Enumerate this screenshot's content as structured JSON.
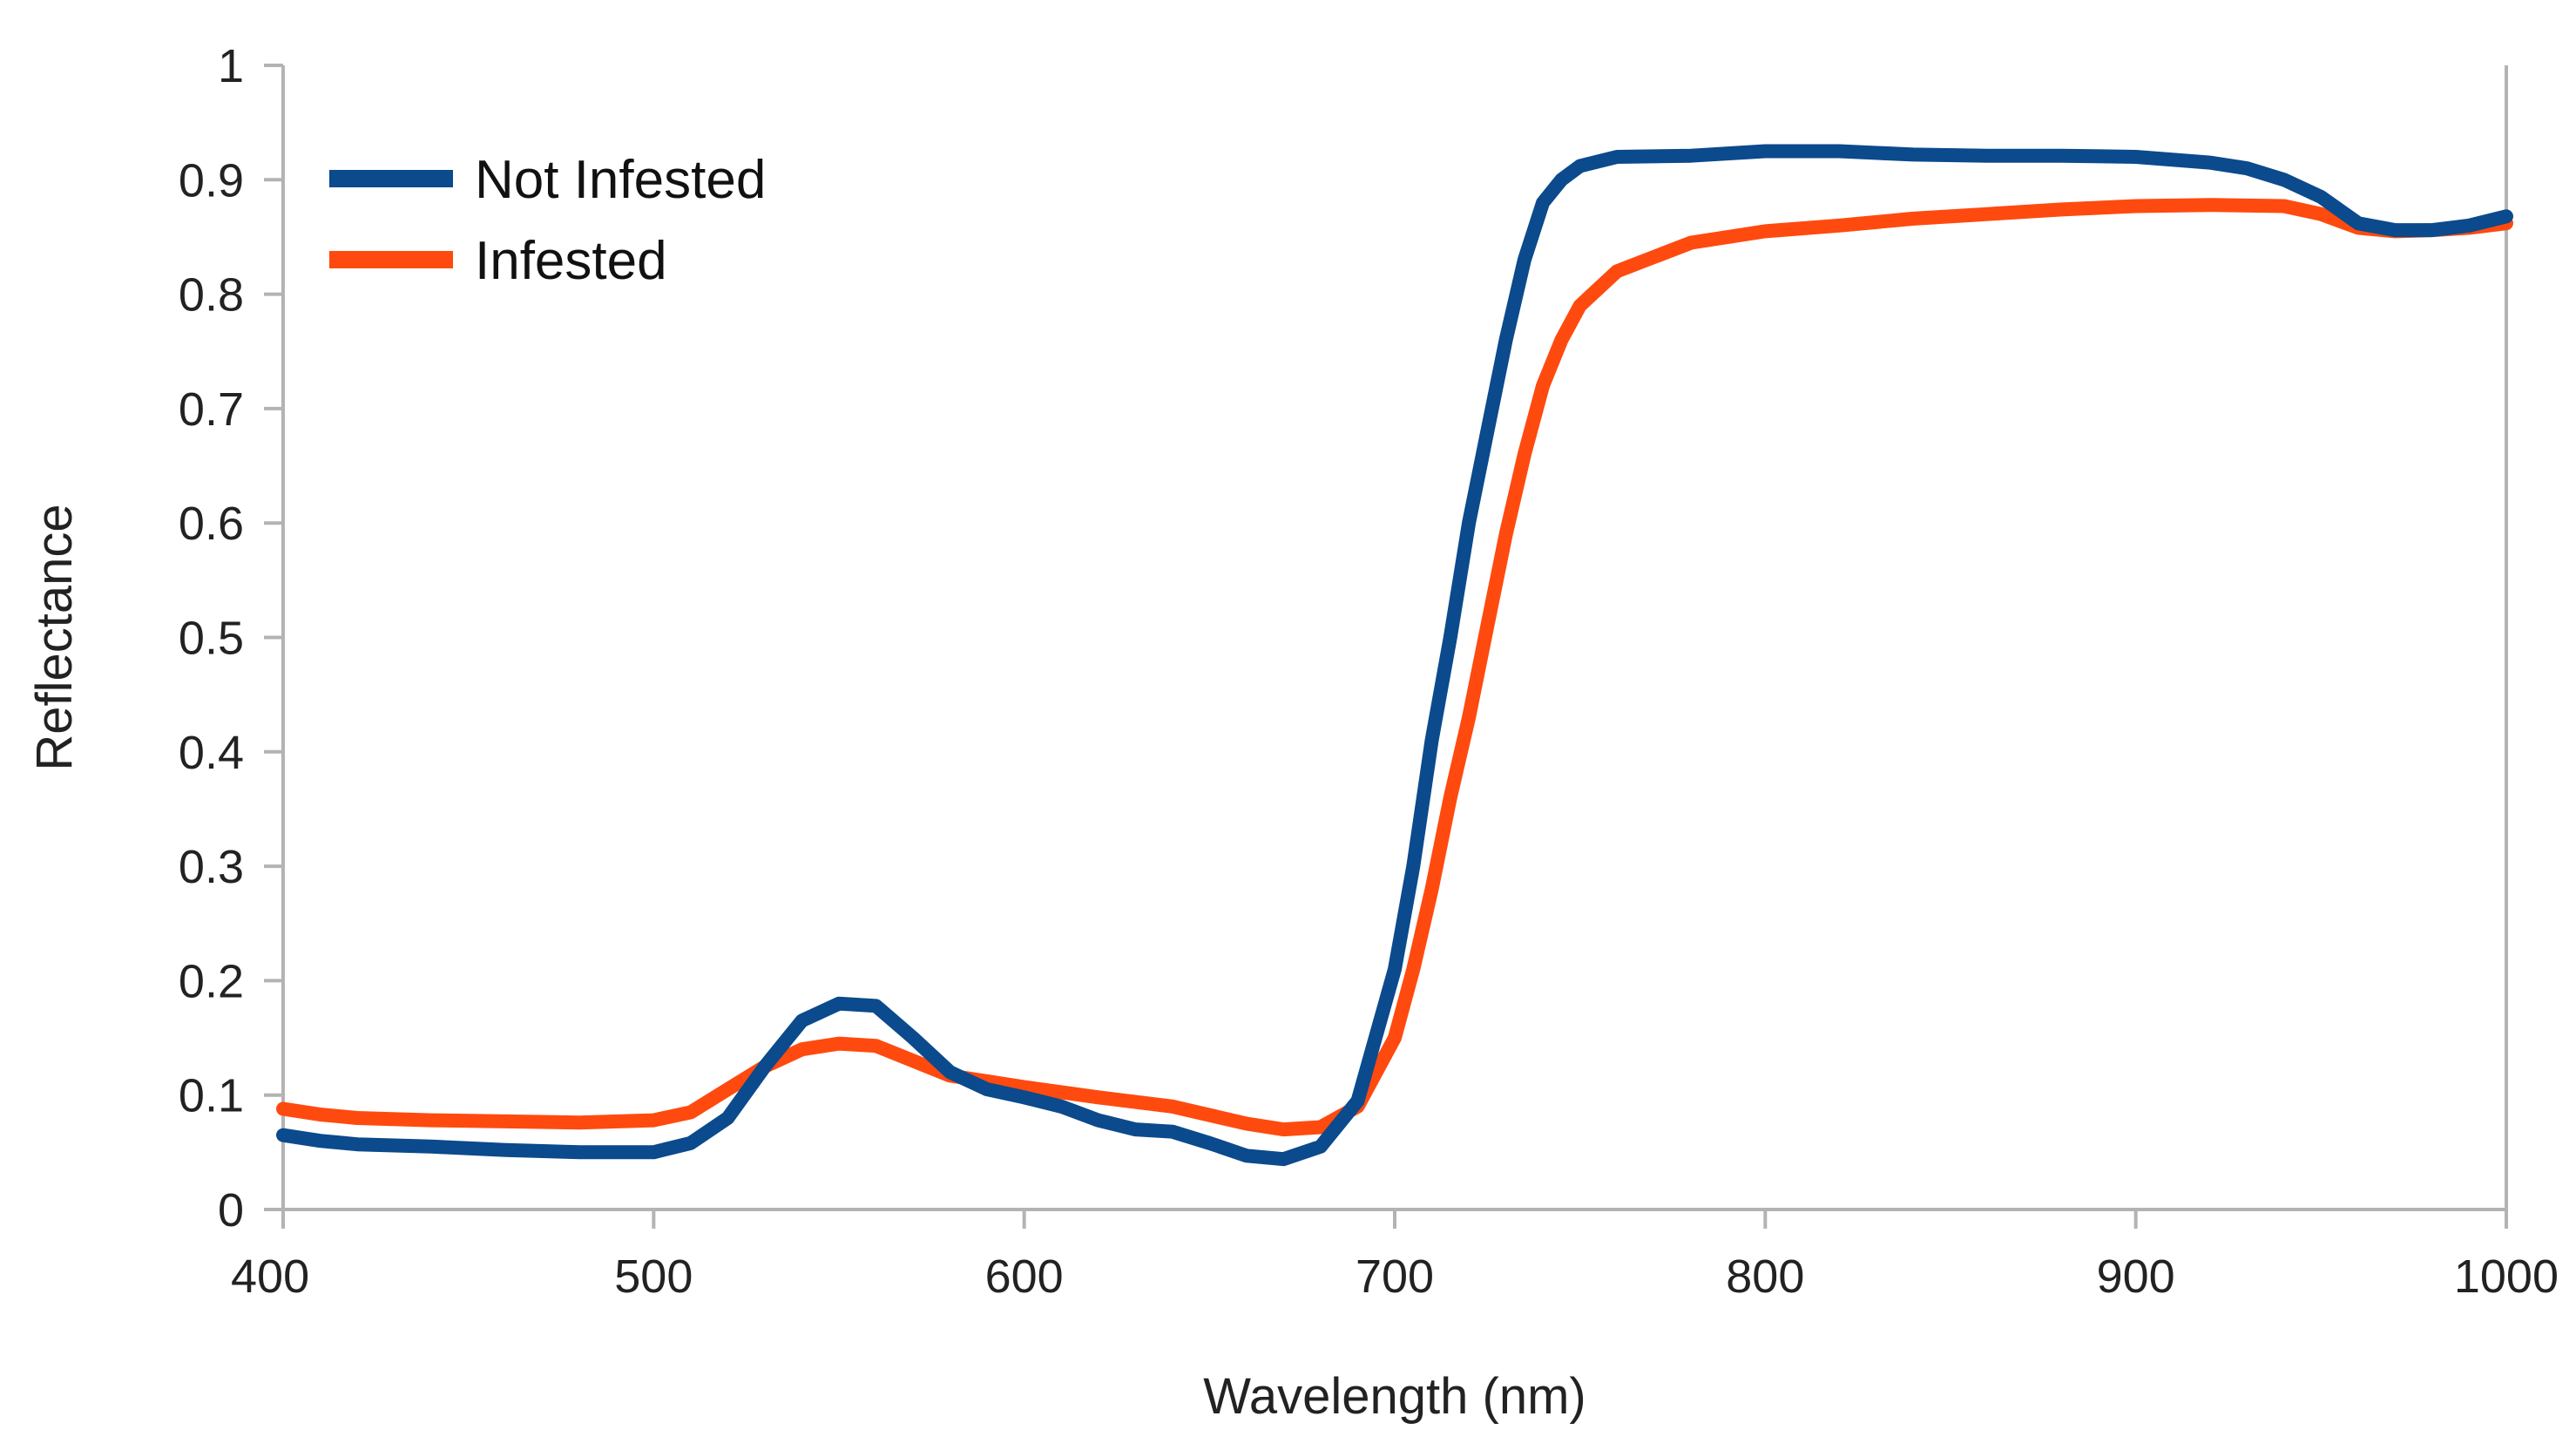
{
  "chart_data": {
    "type": "line",
    "title": "",
    "xlabel": "Wavelength (nm)",
    "ylabel": "Reflectance",
    "xlim": [
      400,
      1000
    ],
    "ylim": [
      0,
      1
    ],
    "xticks": [
      400,
      500,
      600,
      700,
      800,
      900,
      1000
    ],
    "yticks": [
      0,
      0.1,
      0.2,
      0.3,
      0.4,
      0.5,
      0.6,
      0.7,
      0.8,
      0.9,
      1
    ],
    "xtick_labels": [
      "400",
      "500",
      "600",
      "700",
      "800",
      "900",
      "1000"
    ],
    "ytick_labels": [
      "0",
      "0.1",
      "0.2",
      "0.3",
      "0.4",
      "0.5",
      "0.6",
      "0.7",
      "0.8",
      "0.9",
      "1"
    ],
    "grid": false,
    "legend_position": "top-left",
    "series": [
      {
        "name": "Not Infested",
        "color": "#0b4a8c",
        "points": [
          [
            400,
            0.065
          ],
          [
            410,
            0.06
          ],
          [
            420,
            0.057
          ],
          [
            440,
            0.055
          ],
          [
            460,
            0.052
          ],
          [
            480,
            0.05
          ],
          [
            500,
            0.05
          ],
          [
            510,
            0.058
          ],
          [
            520,
            0.08
          ],
          [
            530,
            0.125
          ],
          [
            540,
            0.165
          ],
          [
            550,
            0.18
          ],
          [
            560,
            0.178
          ],
          [
            570,
            0.15
          ],
          [
            580,
            0.12
          ],
          [
            590,
            0.105
          ],
          [
            600,
            0.098
          ],
          [
            610,
            0.09
          ],
          [
            620,
            0.078
          ],
          [
            630,
            0.07
          ],
          [
            640,
            0.068
          ],
          [
            650,
            0.058
          ],
          [
            660,
            0.047
          ],
          [
            670,
            0.044
          ],
          [
            680,
            0.055
          ],
          [
            690,
            0.095
          ],
          [
            700,
            0.21
          ],
          [
            705,
            0.3
          ],
          [
            710,
            0.41
          ],
          [
            715,
            0.5
          ],
          [
            720,
            0.6
          ],
          [
            725,
            0.68
          ],
          [
            730,
            0.76
          ],
          [
            735,
            0.83
          ],
          [
            740,
            0.88
          ],
          [
            745,
            0.9
          ],
          [
            750,
            0.912
          ],
          [
            760,
            0.92
          ],
          [
            780,
            0.921
          ],
          [
            800,
            0.925
          ],
          [
            820,
            0.925
          ],
          [
            840,
            0.922
          ],
          [
            860,
            0.921
          ],
          [
            880,
            0.921
          ],
          [
            900,
            0.92
          ],
          [
            920,
            0.915
          ],
          [
            930,
            0.91
          ],
          [
            940,
            0.9
          ],
          [
            950,
            0.885
          ],
          [
            960,
            0.862
          ],
          [
            970,
            0.856
          ],
          [
            980,
            0.856
          ],
          [
            990,
            0.86
          ],
          [
            1000,
            0.868
          ]
        ]
      },
      {
        "name": "Infested",
        "color": "#ff4a0f",
        "points": [
          [
            400,
            0.088
          ],
          [
            410,
            0.083
          ],
          [
            420,
            0.08
          ],
          [
            440,
            0.078
          ],
          [
            460,
            0.077
          ],
          [
            480,
            0.076
          ],
          [
            500,
            0.078
          ],
          [
            510,
            0.085
          ],
          [
            520,
            0.105
          ],
          [
            530,
            0.125
          ],
          [
            540,
            0.14
          ],
          [
            550,
            0.145
          ],
          [
            560,
            0.143
          ],
          [
            570,
            0.13
          ],
          [
            580,
            0.117
          ],
          [
            590,
            0.112
          ],
          [
            600,
            0.107
          ],
          [
            620,
            0.098
          ],
          [
            640,
            0.09
          ],
          [
            660,
            0.075
          ],
          [
            670,
            0.07
          ],
          [
            680,
            0.072
          ],
          [
            690,
            0.09
          ],
          [
            700,
            0.15
          ],
          [
            705,
            0.21
          ],
          [
            710,
            0.28
          ],
          [
            715,
            0.36
          ],
          [
            720,
            0.43
          ],
          [
            725,
            0.51
          ],
          [
            730,
            0.59
          ],
          [
            735,
            0.66
          ],
          [
            740,
            0.72
          ],
          [
            745,
            0.76
          ],
          [
            750,
            0.79
          ],
          [
            760,
            0.82
          ],
          [
            780,
            0.845
          ],
          [
            800,
            0.855
          ],
          [
            820,
            0.86
          ],
          [
            840,
            0.866
          ],
          [
            860,
            0.87
          ],
          [
            880,
            0.874
          ],
          [
            900,
            0.877
          ],
          [
            920,
            0.878
          ],
          [
            940,
            0.877
          ],
          [
            950,
            0.87
          ],
          [
            960,
            0.858
          ],
          [
            970,
            0.855
          ],
          [
            980,
            0.856
          ],
          [
            990,
            0.858
          ],
          [
            1000,
            0.862
          ]
        ]
      }
    ]
  }
}
